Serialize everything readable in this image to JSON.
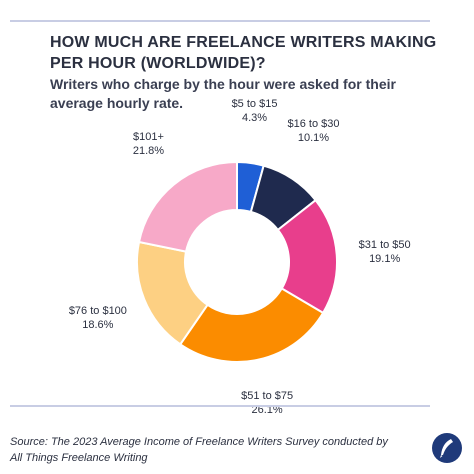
{
  "header": {
    "title": "HOW MUCH ARE FREELANCE WRITERS MAKING PER HOUR (WORLDWIDE)?",
    "subtitle": "Writers who charge by the hour were asked for their average hourly rate."
  },
  "source": "Source: The 2023 Average Income of Freelance Writers Survey conducted by All Things Freelance Writing",
  "logo_icon": "quill-pen-icon",
  "chart_data": {
    "type": "pie",
    "donut": true,
    "slices": [
      {
        "label": "$5 to $15",
        "value_text": "4.3%",
        "value": 4.3,
        "color": "#1f5fd6"
      },
      {
        "label": "$16 to $30",
        "value_text": "10.1%",
        "value": 10.1,
        "color": "#1f2a4e"
      },
      {
        "label": "$31 to $50",
        "value_text": "19.1%",
        "value": 19.1,
        "color": "#e83e8c"
      },
      {
        "label": "$51 to $75",
        "value_text": "26.1%",
        "value": 26.1,
        "color": "#fb8c00"
      },
      {
        "label": "$76 to $100",
        "value_text": "18.6%",
        "value": 18.6,
        "color": "#fdd083"
      },
      {
        "label": "$101+",
        "value_text": "21.8%",
        "value": 21.8,
        "color": "#f7a9c8"
      }
    ]
  }
}
